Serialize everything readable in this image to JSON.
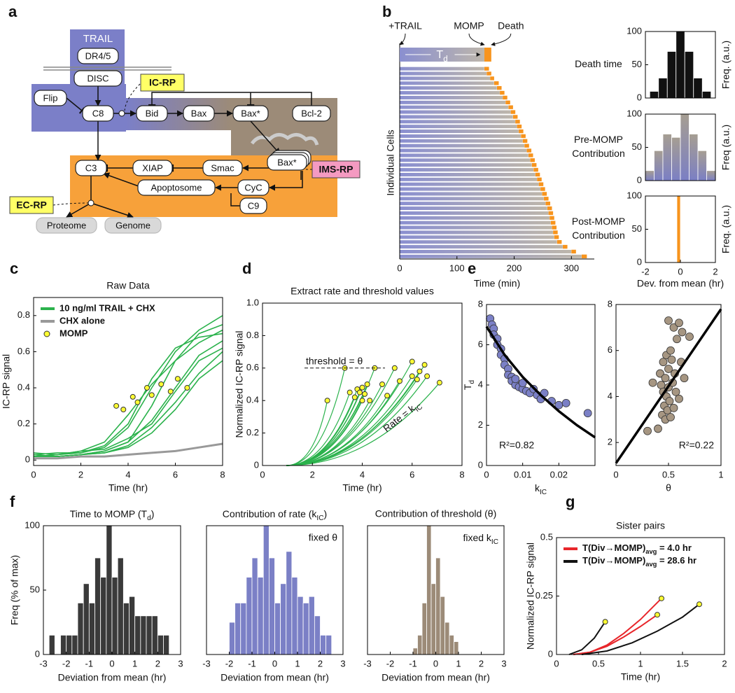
{
  "panel_labels": [
    "a",
    "b",
    "c",
    "d",
    "e",
    "f",
    "g"
  ],
  "diagram": {
    "nodes": [
      {
        "label": "TRAIL"
      },
      {
        "label": "DR4/5"
      },
      {
        "label": "DISC"
      },
      {
        "label": "Flip"
      },
      {
        "label": "C8"
      },
      {
        "label": "Bid"
      },
      {
        "label": "Bax"
      },
      {
        "label": "Bax*"
      },
      {
        "label": "Bcl-2"
      },
      {
        "label": "Bax*"
      },
      {
        "label": "C3"
      },
      {
        "label": "XIAP"
      },
      {
        "label": "Smac"
      },
      {
        "label": "Apoptosome"
      },
      {
        "label": "CyC"
      },
      {
        "label": "C9"
      },
      {
        "label": "Proteome"
      },
      {
        "label": "Genome"
      }
    ],
    "reporters": [
      {
        "label": "IC-RP"
      },
      {
        "label": "IMS-RP"
      },
      {
        "label": "EC-RP"
      }
    ]
  },
  "chart_data": [
    {
      "type": "cell-timeline",
      "top_labels": [
        "+TRAIL",
        "MOMP",
        "Death"
      ],
      "td_label": [
        "T",
        "d"
      ],
      "example": [
        148,
        160
      ],
      "ylabel": "Individual Cells",
      "xlabel": "Time (min)",
      "xlim": [
        0,
        340
      ],
      "xticks": [
        0,
        100,
        200,
        300
      ],
      "series": [
        {
          "name": "MOMP",
          "color": "#8a8fd0",
          "values": [
            148,
            152,
            158,
            165,
            170,
            175,
            180,
            185,
            190,
            194,
            198,
            202,
            205,
            208,
            212,
            215,
            218,
            222,
            225,
            228,
            231,
            234,
            237,
            240,
            243,
            246,
            249,
            252,
            255,
            258,
            260,
            262,
            264,
            266,
            268,
            270,
            275,
            285,
            300,
            318
          ]
        },
        {
          "name": "Death",
          "color": "#f7941d",
          "values": [
            156,
            160,
            165,
            173,
            178,
            183,
            188,
            193,
            198,
            202,
            206,
            210,
            213,
            216,
            220,
            223,
            226,
            230,
            233,
            236,
            239,
            242,
            245,
            248,
            251,
            254,
            257,
            260,
            263,
            266,
            268,
            270,
            272,
            274,
            276,
            278,
            283,
            293,
            308,
            327
          ]
        }
      ]
    },
    {
      "type": "histogram",
      "title_lines": [
        "Death time"
      ],
      "ylabel": "Freq. (a.u.)",
      "color": "#111111",
      "bins": [
        -1.75,
        -1.25,
        -0.75,
        -0.25,
        0.25,
        0.75,
        1.25,
        1.75
      ],
      "values": [
        10,
        30,
        70,
        100,
        70,
        30,
        10
      ],
      "xlim": [
        -2,
        2
      ],
      "ylim": [
        0,
        100
      ],
      "yticks": [
        0,
        50,
        100
      ]
    },
    {
      "type": "histogram",
      "title_lines": [
        "Pre-MOMP",
        "Contribution"
      ],
      "ylabel": "Freq (a.u.)",
      "color": [
        "#7b7fc4",
        "#a69e92"
      ],
      "bins": [
        -2,
        -1.5,
        -1,
        -0.5,
        0,
        0.5,
        1,
        1.5,
        2
      ],
      "values": [
        15,
        45,
        70,
        65,
        100,
        70,
        45,
        15
      ],
      "xlim": [
        -2,
        2
      ],
      "ylim": [
        0,
        100
      ],
      "yticks": [
        0,
        50,
        100
      ]
    },
    {
      "type": "histogram",
      "title_lines": [
        "Post-MOMP",
        "Contribution"
      ],
      "ylabel": "Freq. (a.u.)",
      "xlabel": "Dev. from mean (hr)",
      "color": "#f7941d",
      "bins": [
        -0.2,
        0
      ],
      "values": [
        100
      ],
      "xlim": [
        -2,
        2
      ],
      "xticks": [
        -2,
        0,
        2
      ],
      "ylim": [
        0,
        100
      ],
      "yticks": [
        0,
        50,
        100
      ]
    },
    {
      "type": "line-traces",
      "title": "Raw Data",
      "ylabel": "IC-RP signal",
      "xlabel": "Time (hr)",
      "xlim": [
        0,
        8
      ],
      "xticks": [
        0,
        2,
        4,
        6,
        8
      ],
      "ylim": [
        -0.03,
        0.9
      ],
      "yticks": [
        0,
        0.2,
        0.4,
        0.6,
        0.8
      ],
      "legend": "upper left",
      "x": [
        0,
        1,
        2,
        3,
        4,
        5,
        6,
        7,
        8
      ],
      "series": [
        {
          "name": "10 ng/ml TRAIL + CHX",
          "color": "#2bb24c",
          "traces": [
            [
              0.03,
              0.02,
              0.03,
              0.05,
              0.1,
              0.3,
              0.55,
              0.7,
              0.75
            ],
            [
              0.02,
              0.03,
              0.04,
              0.07,
              0.18,
              0.4,
              0.6,
              0.72,
              0.8
            ],
            [
              0.04,
              0.03,
              0.05,
              0.06,
              0.12,
              0.2,
              0.38,
              0.55,
              0.62
            ],
            [
              0.02,
              0.02,
              0.03,
              0.04,
              0.08,
              0.18,
              0.32,
              0.48,
              0.6
            ],
            [
              0.03,
              0.04,
              0.04,
              0.08,
              0.2,
              0.45,
              0.62,
              0.68,
              0.7
            ],
            [
              0.02,
              0.02,
              0.03,
              0.05,
              0.1,
              0.22,
              0.4,
              0.58,
              0.66
            ],
            [
              0.03,
              0.02,
              0.03,
              0.04,
              0.07,
              0.15,
              0.28,
              0.45,
              0.55
            ],
            [
              0.02,
              0.03,
              0.05,
              0.1,
              0.25,
              0.42,
              0.55,
              0.65,
              0.72
            ]
          ]
        },
        {
          "name": "CHX alone",
          "color": "#999999",
          "values": [
            0.01,
            0.01,
            0.02,
            0.02,
            0.03,
            0.04,
            0.05,
            0.07,
            0.09
          ]
        },
        {
          "name": "MOMP",
          "color": "#ffff33",
          "marker": "circle",
          "x": [
            3.5,
            3.8,
            4.2,
            4.4,
            4.8,
            5.0,
            5.4,
            5.8,
            6.1,
            6.5
          ],
          "values": [
            0.3,
            0.28,
            0.35,
            0.32,
            0.4,
            0.36,
            0.42,
            0.38,
            0.45,
            0.4
          ]
        }
      ]
    },
    {
      "type": "fit-curves",
      "title": "Extract rate and threshold values",
      "ylabel": "Normalized IC-RP signal",
      "xlabel": "Time (hr)",
      "xlim": [
        0,
        8
      ],
      "xticks": [
        0,
        2,
        4,
        6,
        8
      ],
      "ylim": [
        0,
        1
      ],
      "yticks": [
        0,
        0.2,
        0.4,
        0.6,
        0.8,
        {
          "value": 1,
          "label": "1.0"
        }
      ],
      "color": "#2bb24c",
      "marker_color": "#ffff33",
      "threshold": {
        "value": 0.6,
        "label": "threshold = θ"
      },
      "rate_label": [
        "Rate = k",
        "IC"
      ],
      "x": [
        2.6,
        3.3,
        3.5,
        3.7,
        3.8,
        3.9,
        4.0,
        4.0,
        4.1,
        4.2,
        4.3,
        4.5,
        4.8,
        5.0,
        5.3,
        5.5,
        6.0,
        6.0,
        6.2,
        6.3,
        6.5,
        6.6,
        7.1
      ],
      "values": [
        0.4,
        0.6,
        0.45,
        0.42,
        0.47,
        0.45,
        0.48,
        0.4,
        0.44,
        0.5,
        0.4,
        0.6,
        0.5,
        0.43,
        0.6,
        0.52,
        0.55,
        0.64,
        0.53,
        0.58,
        0.62,
        0.55,
        0.51
      ]
    },
    {
      "type": "scatter",
      "ylabel": [
        "T",
        "d"
      ],
      "xlabel": [
        "k",
        "IC"
      ],
      "xlim": [
        0,
        0.03
      ],
      "xticks": [
        0,
        0.01,
        0.02
      ],
      "ylim": [
        0,
        8
      ],
      "yticks": [
        0,
        2,
        4,
        6,
        8
      ],
      "color": "#7b80c6",
      "annotation": "R²=0.82",
      "annotation_corner": "lower left",
      "x": [
        0.001,
        0.0015,
        0.002,
        0.002,
        0.003,
        0.003,
        0.004,
        0.004,
        0.005,
        0.005,
        0.006,
        0.006,
        0.007,
        0.007,
        0.008,
        0.008,
        0.009,
        0.01,
        0.01,
        0.011,
        0.012,
        0.013,
        0.014,
        0.015,
        0.016,
        0.018,
        0.02,
        0.022,
        0.028
      ],
      "values": [
        7.3,
        7.0,
        6.8,
        6.5,
        6.3,
        6.0,
        5.8,
        5.5,
        5.3,
        5.0,
        4.8,
        4.5,
        4.4,
        4.2,
        4.0,
        4.3,
        3.9,
        3.8,
        4.1,
        3.7,
        3.6,
        3.8,
        3.5,
        3.3,
        3.6,
        3.2,
        3.0,
        3.1,
        2.6
      ],
      "fit": {
        "x": [
          0,
          0.005,
          0.01,
          0.015,
          0.02,
          0.025,
          0.03
        ],
        "values": [
          6.9,
          5.5,
          4.4,
          3.5,
          2.7,
          2.0,
          1.4
        ]
      }
    },
    {
      "type": "scatter",
      "xlabel": "θ",
      "xlim": [
        0,
        1
      ],
      "xticks": [
        0,
        0.5,
        1
      ],
      "ylim": [
        1,
        8
      ],
      "yticks": [
        2,
        4,
        6,
        8
      ],
      "color": "#a69682",
      "annotation": "R²=0.22",
      "annotation_corner": "lower right",
      "x": [
        0.3,
        0.35,
        0.4,
        0.42,
        0.43,
        0.44,
        0.45,
        0.45,
        0.46,
        0.47,
        0.47,
        0.48,
        0.48,
        0.49,
        0.5,
        0.5,
        0.5,
        0.51,
        0.52,
        0.52,
        0.53,
        0.54,
        0.55,
        0.55,
        0.56,
        0.57,
        0.58,
        0.6,
        0.6,
        0.62,
        0.63,
        0.65,
        0.7
      ],
      "values": [
        2.5,
        4.6,
        2.6,
        5.0,
        4.5,
        3.2,
        5.5,
        4.2,
        3.6,
        4.8,
        3.0,
        5.8,
        4.0,
        3.4,
        7.3,
        5.2,
        4.4,
        3.8,
        6.0,
        3.1,
        5.6,
        4.6,
        7.0,
        3.5,
        5.0,
        4.2,
        6.5,
        7.2,
        3.9,
        5.5,
        6.8,
        4.8,
        6.6
      ],
      "fit": {
        "x": [
          0,
          1
        ],
        "values": [
          1.1,
          7.8
        ]
      }
    },
    {
      "type": "histogram",
      "title": [
        "Time to MOMP (T",
        "d",
        ")"
      ],
      "ylabel": "Freq (% of max)",
      "xlabel": "Deviation from mean (hr)",
      "color": "#3a3a3a",
      "bins": [
        -2.75,
        -2.5,
        -2.25,
        -2,
        -1.75,
        -1.5,
        -1.25,
        -1,
        -0.75,
        -0.5,
        -0.25,
        0,
        0.25,
        0.5,
        0.75,
        1,
        1.25,
        1.5,
        1.75,
        2,
        2.25,
        2.5,
        2.75
      ],
      "values": [
        15,
        0,
        15,
        15,
        15,
        40,
        55,
        40,
        75,
        60,
        100,
        60,
        75,
        40,
        45,
        30,
        30,
        30,
        30,
        15,
        15,
        0
      ],
      "xlim": [
        -3,
        3
      ],
      "xticks": [
        -3,
        -2,
        -1,
        0,
        1,
        2,
        3
      ],
      "ylim": [
        0,
        100
      ],
      "yticks": [
        0,
        50,
        100
      ]
    },
    {
      "type": "histogram",
      "title": [
        "Contribution of rate (k",
        "IC",
        ")"
      ],
      "annotation": "fixed θ",
      "xlabel": "Deviation from mean (hr)",
      "color": "#7b80c6",
      "bins": [
        -2,
        -1.75,
        -1.5,
        -1.25,
        -1,
        -0.75,
        -0.5,
        -0.25,
        0,
        0.25,
        0.5,
        0.75,
        1,
        1.25,
        1.5,
        1.75,
        2,
        2.25,
        2.5
      ],
      "values": [
        25,
        40,
        40,
        60,
        75,
        60,
        100,
        75,
        40,
        55,
        80,
        60,
        45,
        40,
        45,
        30,
        15,
        15
      ],
      "xlim": [
        -3,
        3
      ],
      "xticks": [
        -3,
        -2,
        -1,
        0,
        1,
        2,
        3
      ],
      "ylim": [
        0,
        100
      ]
    },
    {
      "type": "histogram",
      "title": "Contribution of threshold (θ)",
      "annotation": [
        "fixed k",
        "IC"
      ],
      "xlabel": "Deviation from mean (hr)",
      "color": "#9c8b78",
      "bins": [
        -1,
        -0.8,
        -0.6,
        -0.4,
        -0.2,
        0,
        0.2,
        0.4,
        0.6,
        0.8,
        1
      ],
      "values": [
        5,
        15,
        40,
        100,
        55,
        75,
        45,
        25,
        15,
        10
      ],
      "xlim": [
        -3,
        3
      ],
      "xticks": [
        -3,
        -2,
        -1,
        0,
        1,
        2,
        3
      ],
      "ylim": [
        0,
        100
      ]
    },
    {
      "type": "pair-curves",
      "title": "Sister pairs",
      "ylabel": "Normalized IC-RP signal",
      "xlabel": "Time (hr)",
      "xlim": [
        0,
        2
      ],
      "xticks": [
        0,
        0.5,
        1,
        1.5,
        2
      ],
      "ylim": [
        0,
        0.5
      ],
      "yticks": [
        0,
        0.25,
        0.5
      ],
      "legend": "upper left",
      "marker_color": "#ffff33",
      "series": [
        {
          "name": [
            "T(Div→MOMP)",
            "avg",
            " = 4.0 hr"
          ],
          "color": "#e8262b",
          "traces": [
            {
              "x": [
                0.2,
                0.4,
                0.6,
                0.8,
                1.0,
                1.25
              ],
              "values": [
                0,
                0.01,
                0.04,
                0.09,
                0.15,
                0.24
              ]
            },
            {
              "x": [
                0.2,
                0.4,
                0.6,
                0.8,
                1.0,
                1.2
              ],
              "values": [
                0,
                0.01,
                0.035,
                0.075,
                0.12,
                0.17
              ]
            }
          ]
        },
        {
          "name": [
            "T(Div→MOMP)",
            "avg",
            " = 28.6 hr"
          ],
          "color": "#111111",
          "traces": [
            {
              "x": [
                0.15,
                0.3,
                0.45,
                0.58
              ],
              "values": [
                0,
                0.02,
                0.07,
                0.14
              ]
            },
            {
              "x": [
                0.3,
                0.6,
                0.9,
                1.2,
                1.5,
                1.7
              ],
              "values": [
                0,
                0.015,
                0.05,
                0.1,
                0.16,
                0.215
              ]
            }
          ]
        }
      ]
    }
  ]
}
